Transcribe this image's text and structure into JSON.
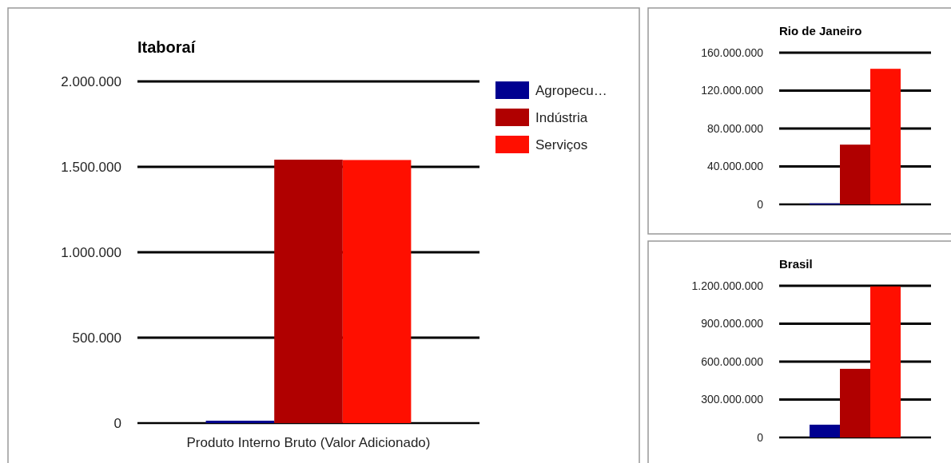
{
  "chart_data": [
    {
      "type": "bar",
      "title": "Itaboraí",
      "categories": [
        "Produto Interno Bruto (Valor Adicionado)"
      ],
      "series": [
        {
          "name": "Agropecu…",
          "color": "#000090",
          "values": [
            14000
          ]
        },
        {
          "name": "Indústria",
          "color": "#b00000",
          "values": [
            1542000
          ]
        },
        {
          "name": "Serviços",
          "color": "#ff0f00",
          "values": [
            1540000
          ]
        }
      ],
      "ylim": [
        0,
        2000000
      ],
      "yticks": [
        {
          "value": 0,
          "label": "0"
        },
        {
          "value": 500000,
          "label": "500.000"
        },
        {
          "value": 1000000,
          "label": "1.000.000"
        },
        {
          "value": 1500000,
          "label": "1.500.000"
        },
        {
          "value": 2000000,
          "label": "2.000.000"
        }
      ],
      "grid": "y",
      "legend": "right"
    },
    {
      "type": "bar",
      "title": "Rio de Janeiro",
      "categories": [
        null
      ],
      "series": [
        {
          "color": "#000090",
          "values": [
            1000000
          ]
        },
        {
          "color": "#b00000",
          "values": [
            63000000
          ]
        },
        {
          "color": "#ff0f00",
          "values": [
            143000000
          ]
        }
      ],
      "ylim": [
        0,
        160000000
      ],
      "yticks": [
        {
          "value": 0,
          "label": "0"
        },
        {
          "value": 40000000,
          "label": "40.000.000"
        },
        {
          "value": 80000000,
          "label": "80.000.000"
        },
        {
          "value": 120000000,
          "label": "120.000.000"
        },
        {
          "value": 160000000,
          "label": "160.000.000"
        }
      ],
      "grid": "y"
    },
    {
      "type": "bar",
      "title": "Brasil",
      "categories": [
        null
      ],
      "series": [
        {
          "color": "#000090",
          "values": [
            101000000
          ]
        },
        {
          "color": "#b00000",
          "values": [
            543000000
          ]
        },
        {
          "color": "#ff0f00",
          "values": [
            1195000000
          ]
        }
      ],
      "ylim": [
        0,
        1200000000
      ],
      "yticks": [
        {
          "value": 0,
          "label": "0"
        },
        {
          "value": 300000000,
          "label": "300.000.000"
        },
        {
          "value": 600000000,
          "label": "600.000.000"
        },
        {
          "value": 900000000,
          "label": "900.000.000"
        },
        {
          "value": 1200000000,
          "label": "1.200.000.000"
        }
      ],
      "grid": "y"
    }
  ]
}
